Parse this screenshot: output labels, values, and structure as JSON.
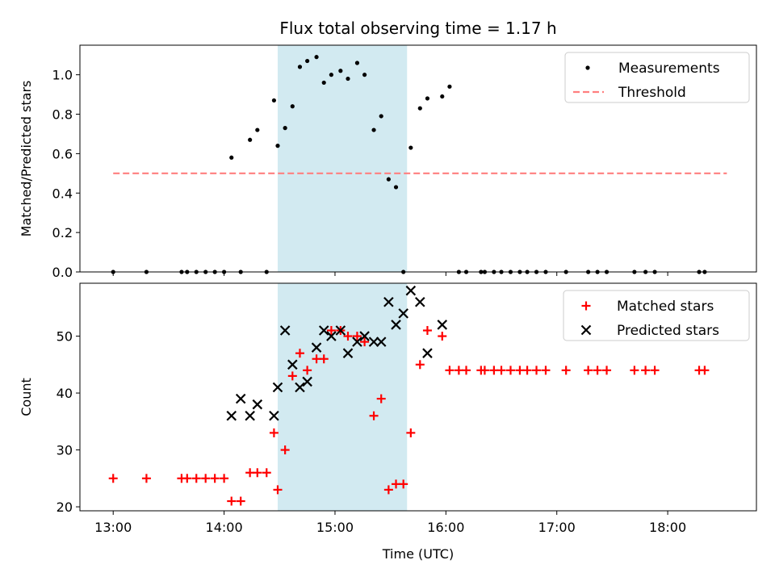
{
  "chart_data": [
    {
      "type": "scatter",
      "title": "Flux total observing time = 1.17 h",
      "ylabel": "Matched/Predicted stars",
      "xlabel": "",
      "xlim": [
        "12:42",
        "18:48"
      ],
      "ylim": [
        0,
        1.15
      ],
      "yticks": [
        0.0,
        0.2,
        0.4,
        0.6,
        0.8,
        1.0
      ],
      "ytick_labels": [
        "0.0",
        "0.2",
        "0.4",
        "0.6",
        "0.8",
        "1.0"
      ],
      "xticks": [
        "13:00",
        "14:00",
        "15:00",
        "16:00",
        "17:00",
        "18:00"
      ],
      "x_tick_labels_visible": false,
      "shaded_span": [
        "14:29",
        "15:39"
      ],
      "shaded_color": "#add8e6",
      "grid": false,
      "legend_position": "top-right",
      "series": [
        {
          "name": "Measurements",
          "kind": "scatter-dot",
          "color": "#000000",
          "x": [
            "13:00",
            "13:18",
            "13:37",
            "13:40",
            "13:45",
            "13:50",
            "13:55",
            "14:00",
            "14:04",
            "14:09",
            "14:14",
            "14:18",
            "14:23",
            "14:27",
            "14:29",
            "14:33",
            "14:37",
            "14:41",
            "14:45",
            "14:50",
            "14:54",
            "14:58",
            "15:03",
            "15:07",
            "15:12",
            "15:16",
            "15:21",
            "15:25",
            "15:29",
            "15:33",
            "15:37",
            "15:41",
            "15:46",
            "15:50",
            "15:58",
            "16:02",
            "16:07",
            "16:11",
            "16:19",
            "16:21",
            "16:26",
            "16:30",
            "16:35",
            "16:40",
            "16:44",
            "16:49",
            "16:54",
            "17:05",
            "17:17",
            "17:22",
            "17:27",
            "17:42",
            "17:48",
            "17:53",
            "18:17",
            "18:20"
          ],
          "values": [
            0,
            0,
            0,
            0,
            0,
            0,
            0,
            0,
            0.58,
            0,
            0.67,
            0.72,
            0,
            0.87,
            0.64,
            0.73,
            0.84,
            1.04,
            1.07,
            1.09,
            0.96,
            1.0,
            1.02,
            0.98,
            1.06,
            1.0,
            0.72,
            0.79,
            0.47,
            0.43,
            0,
            0.63,
            0.83,
            0.88,
            0.89,
            0.94,
            0,
            0,
            0,
            0,
            0,
            0,
            0,
            0,
            0,
            0,
            0,
            0,
            0,
            0,
            0,
            0,
            0,
            0,
            0,
            0
          ]
        },
        {
          "name": "Threshold",
          "kind": "dashed-line",
          "color": "#ff7f7f",
          "x": [
            "13:00",
            "18:32"
          ],
          "values": [
            0.5,
            0.5
          ]
        }
      ]
    },
    {
      "type": "scatter",
      "title": "",
      "ylabel": "Count",
      "xlabel": "Time (UTC)",
      "xlim": [
        "12:42",
        "18:48"
      ],
      "ylim": [
        19.3,
        59.3
      ],
      "yticks": [
        20,
        30,
        40,
        50
      ],
      "ytick_labels": [
        "20",
        "30",
        "40",
        "50"
      ],
      "xticks": [
        "13:00",
        "14:00",
        "15:00",
        "16:00",
        "17:00",
        "18:00"
      ],
      "x_tick_labels": [
        "13:00",
        "14:00",
        "15:00",
        "16:00",
        "17:00",
        "18:00"
      ],
      "shaded_span": [
        "14:29",
        "15:39"
      ],
      "shaded_color": "#add8e6",
      "grid": false,
      "legend_position": "top-right",
      "series": [
        {
          "name": "Matched stars",
          "kind": "plus",
          "color": "#ff0000",
          "x": [
            "13:00",
            "13:18",
            "13:37",
            "13:40",
            "13:45",
            "13:50",
            "13:55",
            "14:00",
            "14:04",
            "14:09",
            "14:14",
            "14:18",
            "14:23",
            "14:27",
            "14:29",
            "14:33",
            "14:37",
            "14:41",
            "14:45",
            "14:50",
            "14:54",
            "14:58",
            "15:03",
            "15:07",
            "15:12",
            "15:16",
            "15:21",
            "15:25",
            "15:29",
            "15:33",
            "15:37",
            "15:41",
            "15:46",
            "15:50",
            "15:58",
            "16:02",
            "16:07",
            "16:11",
            "16:19",
            "16:21",
            "16:26",
            "16:30",
            "16:35",
            "16:40",
            "16:44",
            "16:49",
            "16:54",
            "17:05",
            "17:17",
            "17:22",
            "17:27",
            "17:42",
            "17:48",
            "17:53",
            "18:17",
            "18:20"
          ],
          "values": [
            25,
            25,
            25,
            25,
            25,
            25,
            25,
            25,
            21,
            21,
            26,
            26,
            26,
            33,
            23,
            30,
            43,
            47,
            44,
            46,
            46,
            51,
            51,
            50,
            50,
            49,
            36,
            39,
            23,
            24,
            24,
            33,
            45,
            51,
            50,
            44,
            44,
            44,
            44,
            44,
            44,
            44,
            44,
            44,
            44,
            44,
            44,
            44,
            44,
            44,
            44,
            44,
            44,
            44,
            44,
            44
          ]
        },
        {
          "name": "Predicted stars",
          "kind": "x",
          "color": "#000000",
          "x": [
            "14:04",
            "14:09",
            "14:14",
            "14:18",
            "14:27",
            "14:29",
            "14:33",
            "14:37",
            "14:41",
            "14:45",
            "14:50",
            "14:54",
            "14:58",
            "15:03",
            "15:07",
            "15:12",
            "15:16",
            "15:21",
            "15:25",
            "15:29",
            "15:33",
            "15:37",
            "15:41",
            "15:46",
            "15:50",
            "15:58"
          ],
          "values": [
            36,
            39,
            36,
            38,
            36,
            41,
            51,
            45,
            41,
            42,
            48,
            51,
            50,
            51,
            47,
            49,
            50,
            49,
            49,
            56,
            52,
            54,
            58,
            56,
            47,
            52
          ]
        }
      ]
    }
  ]
}
